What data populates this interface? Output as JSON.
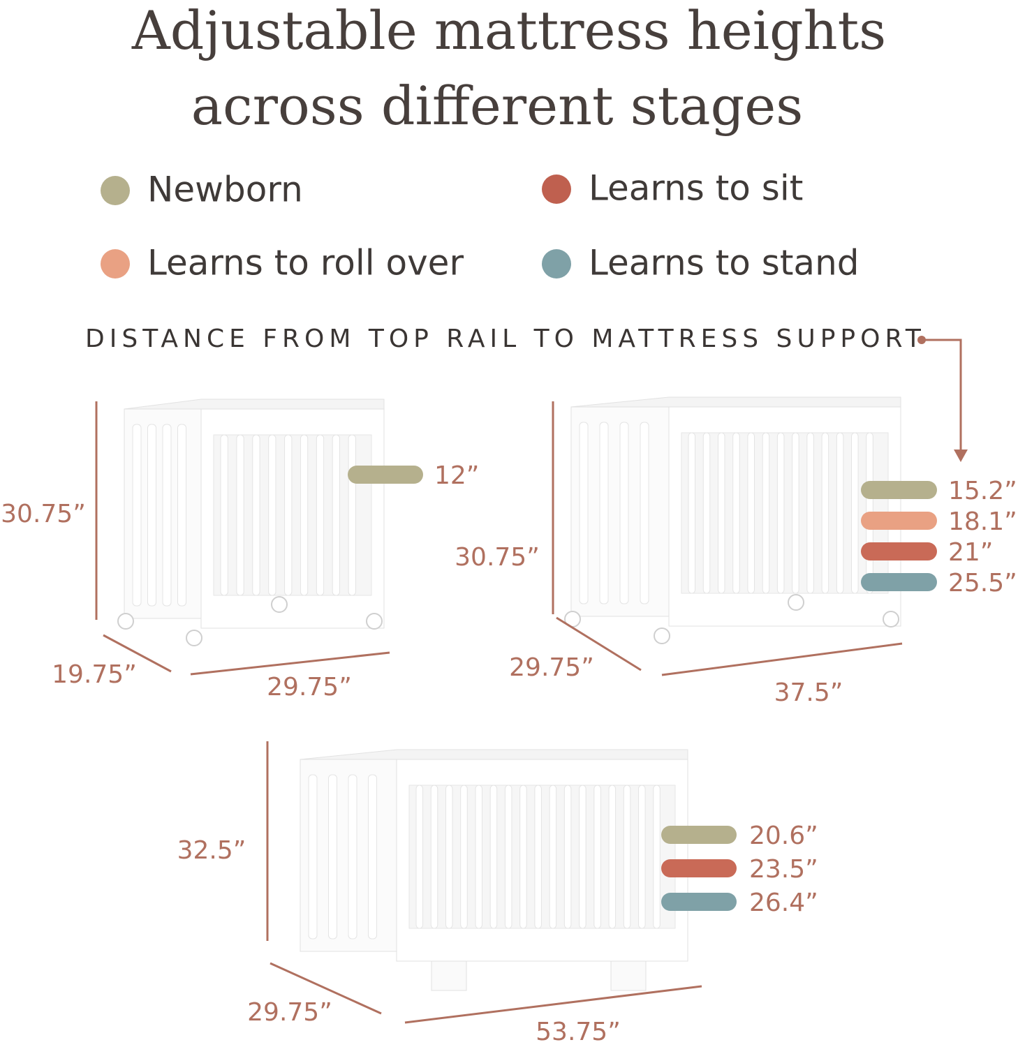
{
  "title_lines": [
    "Adjustable mattress heights",
    "across different stages"
  ],
  "legend": [
    {
      "label": "Newborn",
      "color": "#b5b08d"
    },
    {
      "label": "Learns to sit",
      "color": "#bf604f"
    },
    {
      "label": "Learns to roll over",
      "color": "#e9a183"
    },
    {
      "label": "Learns to stand",
      "color": "#7fa1a7"
    }
  ],
  "caption": "DISTANCE FROM TOP RAIL TO MATTRESS SUPPORT",
  "dimension_color": "#b0705f",
  "cribs": [
    {
      "height": "30.75”",
      "depth": "19.75”",
      "width": "29.75”",
      "levels": [
        {
          "label": "12”",
          "color": "#b5b08d"
        }
      ]
    },
    {
      "height": "30.75”",
      "depth": "29.75”",
      "width": "37.5”",
      "levels": [
        {
          "label": "15.2”",
          "color": "#b5b08d"
        },
        {
          "label": "18.1”",
          "color": "#e9a183"
        },
        {
          "label": "21”",
          "color": "#c96a57"
        },
        {
          "label": "25.5”",
          "color": "#7fa1a7"
        }
      ]
    },
    {
      "height": "32.5”",
      "depth": "29.75”",
      "width": "53.75”",
      "levels": [
        {
          "label": "20.6”",
          "color": "#b5b08d"
        },
        {
          "label": "23.5”",
          "color": "#c96a57"
        },
        {
          "label": "26.4”",
          "color": "#7fa1a7"
        }
      ]
    }
  ]
}
